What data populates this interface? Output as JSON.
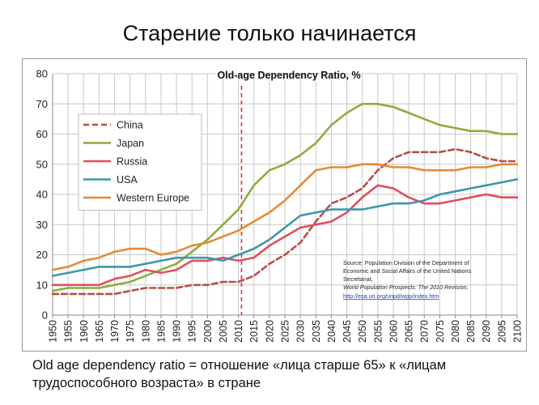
{
  "slide": {
    "title": "Старение только начинается",
    "footnote": "Old age dependency  ratio = отношение «лица старше 65» к «лицам трудоспособного возраста» в стране"
  },
  "chart_data": {
    "type": "line",
    "title": "Old-age Dependency Ratio, %",
    "xlabel": "",
    "ylabel": "",
    "ylim": [
      0,
      80
    ],
    "yticks": [
      0,
      10,
      20,
      30,
      40,
      50,
      60,
      70,
      80
    ],
    "grid": true,
    "legend_position": "top-left",
    "x": [
      1950,
      1955,
      1960,
      1965,
      1970,
      1975,
      1980,
      1985,
      1990,
      1995,
      2000,
      2005,
      2010,
      2015,
      2020,
      2025,
      2030,
      2035,
      2040,
      2045,
      2050,
      2055,
      2060,
      2065,
      2070,
      2075,
      2080,
      2085,
      2090,
      2095,
      2100
    ],
    "vline": 2011,
    "series": [
      {
        "name": "China",
        "color": "#b5504b",
        "dash": true,
        "values": [
          7,
          7,
          7,
          7,
          7,
          8,
          9,
          9,
          9,
          10,
          10,
          11,
          11,
          13,
          17,
          20,
          24,
          31,
          37,
          39,
          42,
          48,
          52,
          54,
          54,
          54,
          55,
          54,
          52,
          51,
          51
        ]
      },
      {
        "name": "Japan",
        "color": "#8cad3e",
        "dash": false,
        "values": [
          8,
          9,
          9,
          9,
          10,
          11,
          13,
          15,
          17,
          21,
          25,
          30,
          35,
          43,
          48,
          50,
          53,
          57,
          63,
          67,
          70,
          70,
          69,
          67,
          65,
          63,
          62,
          61,
          61,
          60,
          60
        ]
      },
      {
        "name": "Russia",
        "color": "#e24e5c",
        "dash": false,
        "values": [
          10,
          10,
          10,
          10,
          12,
          13,
          15,
          14,
          15,
          18,
          18,
          19,
          18,
          19,
          23,
          26,
          29,
          30,
          31,
          34,
          39,
          43,
          42,
          39,
          37,
          37,
          38,
          39,
          40,
          39,
          39
        ]
      },
      {
        "name": "USA",
        "color": "#3e96ac",
        "dash": false,
        "values": [
          13,
          14,
          15,
          16,
          16,
          16,
          17,
          18,
          19,
          19,
          19,
          18,
          20,
          22,
          25,
          29,
          33,
          34,
          35,
          35,
          35,
          36,
          37,
          37,
          38,
          40,
          41,
          42,
          43,
          44,
          45
        ]
      },
      {
        "name": "Western Europe",
        "color": "#e58a35",
        "dash": false,
        "values": [
          15,
          16,
          18,
          19,
          21,
          22,
          22,
          20,
          21,
          23,
          24,
          26,
          28,
          31,
          34,
          38,
          43,
          48,
          49,
          49,
          50,
          50,
          49,
          49,
          48,
          48,
          48,
          49,
          49,
          50,
          50
        ]
      }
    ],
    "source": {
      "line1": "Source: Population Division of the Department of",
      "line2": "Economic and Social Affairs of the United Nations",
      "line3": "Secretariat,",
      "line4": "World Population Prospects: The 2010 Revision,",
      "url": "http://esa.un.org/unpd/wpp/index.htm"
    }
  }
}
